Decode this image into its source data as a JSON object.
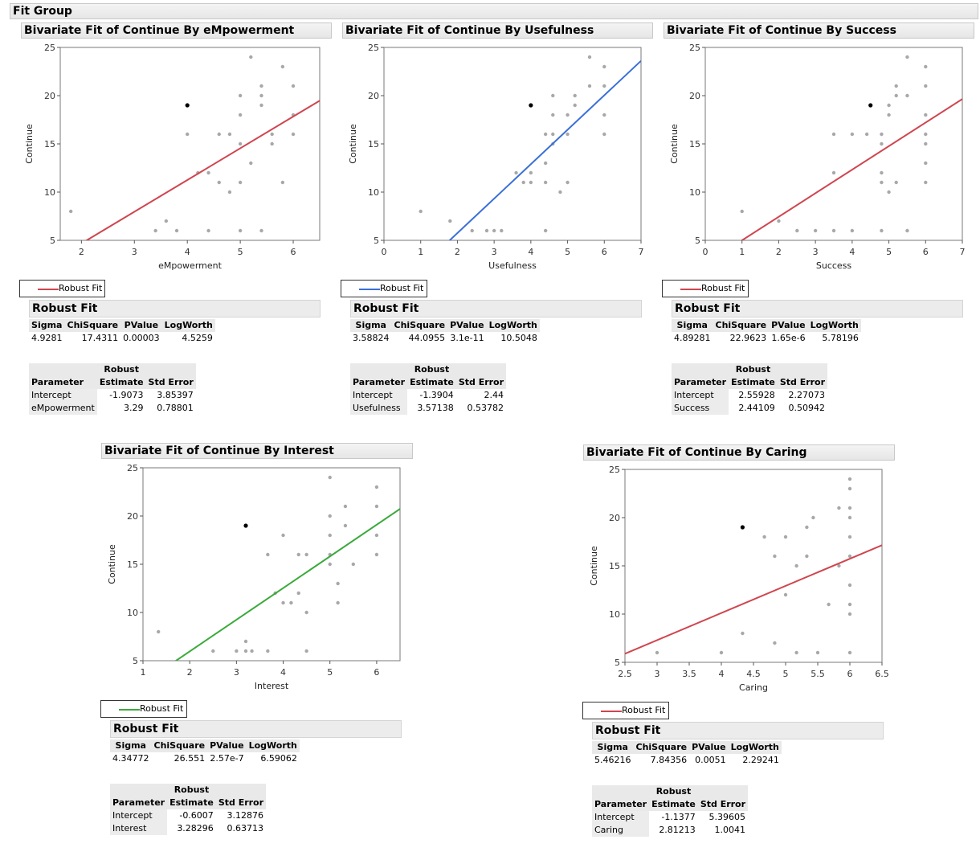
{
  "group_title": "Fit Group",
  "legend_label": "Robust Fit",
  "robust_fit_title": "Robust Fit",
  "stats_headers": [
    "Sigma",
    "ChiSquare",
    "PValue",
    "LogWorth"
  ],
  "param_header_robust": "Robust",
  "param_headers": [
    "Parameter",
    "Estimate",
    "Std Error"
  ],
  "ylabel": "Continue",
  "colors": {
    "red": "#d0454f",
    "blue": "#3a6fd8",
    "green": "#3aaa3a",
    "point": "#a8a8a8",
    "highlight": "#000000"
  },
  "panels": [
    {
      "title": "Bivariate Fit of Continue By eMpowerment",
      "line_color": "#d0454f",
      "stats": {
        "sigma": "4.9281",
        "chisq": "17.4311",
        "pvalue": "0.00003",
        "logworth": "4.5259"
      },
      "params": [
        {
          "name": "Intercept",
          "estimate": "-1.9073",
          "stderr": "3.85397"
        },
        {
          "name": "eMpowerment",
          "estimate": "3.29",
          "stderr": "0.78801"
        }
      ],
      "chart_data": {
        "type": "scatter",
        "title": "Bivariate Fit of Continue By eMpowerment",
        "xlabel": "eMpowerment",
        "ylabel": "Continue",
        "xlim": [
          1.6,
          6.5
        ],
        "ylim": [
          5,
          25
        ],
        "xticks": [
          "2",
          "3",
          "4",
          "5",
          "6"
        ],
        "xtick_values": [
          2,
          3,
          4,
          5,
          6
        ],
        "yticks": [
          "5",
          "10",
          "15",
          "20",
          "25"
        ],
        "ytick_values": [
          5,
          10,
          15,
          20,
          25
        ],
        "fit": {
          "intercept": -1.9073,
          "slope": 3.29
        },
        "highlight": [
          4,
          19
        ],
        "points": [
          [
            1.8,
            8
          ],
          [
            3.4,
            6
          ],
          [
            3.6,
            7
          ],
          [
            3.8,
            6
          ],
          [
            4,
            16
          ],
          [
            4.2,
            12
          ],
          [
            4.4,
            12
          ],
          [
            4.4,
            6
          ],
          [
            4.6,
            16
          ],
          [
            4.6,
            11
          ],
          [
            4.8,
            16
          ],
          [
            4.8,
            10
          ],
          [
            5,
            20
          ],
          [
            5,
            18
          ],
          [
            5,
            15
          ],
          [
            5,
            11
          ],
          [
            5,
            6
          ],
          [
            5.2,
            24
          ],
          [
            5.2,
            13
          ],
          [
            5.4,
            21
          ],
          [
            5.4,
            20
          ],
          [
            5.4,
            19
          ],
          [
            5.4,
            6
          ],
          [
            5.6,
            16
          ],
          [
            5.6,
            15
          ],
          [
            5.8,
            23
          ],
          [
            5.8,
            11
          ],
          [
            6,
            21
          ],
          [
            6,
            18
          ],
          [
            6,
            16
          ]
        ]
      }
    },
    {
      "title": "Bivariate Fit of Continue By Usefulness",
      "line_color": "#3a6fd8",
      "stats": {
        "sigma": "3.58824",
        "chisq": "44.0955",
        "pvalue": "3.1e-11",
        "logworth": "10.5048"
      },
      "params": [
        {
          "name": "Intercept",
          "estimate": "-1.3904",
          "stderr": "2.44"
        },
        {
          "name": "Usefulness",
          "estimate": "3.57138",
          "stderr": "0.53782"
        }
      ],
      "chart_data": {
        "type": "scatter",
        "title": "Bivariate Fit of Continue By Usefulness",
        "xlabel": "Usefulness",
        "ylabel": "Continue",
        "xlim": [
          0,
          7
        ],
        "ylim": [
          5,
          25
        ],
        "xticks": [
          "0",
          "1",
          "2",
          "3",
          "4",
          "5",
          "6",
          "7"
        ],
        "xtick_values": [
          0,
          1,
          2,
          3,
          4,
          5,
          6,
          7
        ],
        "yticks": [
          "5",
          "10",
          "15",
          "20",
          "25"
        ],
        "ytick_values": [
          5,
          10,
          15,
          20,
          25
        ],
        "fit": {
          "intercept": -1.3904,
          "slope": 3.57138
        },
        "highlight": [
          4,
          19
        ],
        "points": [
          [
            1,
            8
          ],
          [
            1.8,
            7
          ],
          [
            2.4,
            6
          ],
          [
            2.8,
            6
          ],
          [
            3,
            6
          ],
          [
            3.2,
            6
          ],
          [
            3.6,
            12
          ],
          [
            3.8,
            11
          ],
          [
            4,
            12
          ],
          [
            4,
            11
          ],
          [
            4.4,
            16
          ],
          [
            4.4,
            13
          ],
          [
            4.4,
            11
          ],
          [
            4.4,
            6
          ],
          [
            4.6,
            20
          ],
          [
            4.6,
            18
          ],
          [
            4.6,
            16
          ],
          [
            4.6,
            15
          ],
          [
            4.8,
            10
          ],
          [
            5,
            18
          ],
          [
            5,
            16
          ],
          [
            5,
            11
          ],
          [
            5.2,
            20
          ],
          [
            5.2,
            19
          ],
          [
            5.6,
            24
          ],
          [
            5.6,
            21
          ],
          [
            6,
            23
          ],
          [
            6,
            21
          ],
          [
            6,
            18
          ],
          [
            6,
            16
          ]
        ]
      }
    },
    {
      "title": "Bivariate Fit of Continue By Success",
      "line_color": "#d0454f",
      "stats": {
        "sigma": "4.89281",
        "chisq": "22.9623",
        "pvalue": "1.65e-6",
        "logworth": "5.78196"
      },
      "params": [
        {
          "name": "Intercept",
          "estimate": "2.55928",
          "stderr": "2.27073"
        },
        {
          "name": "Success",
          "estimate": "2.44109",
          "stderr": "0.50942"
        }
      ],
      "chart_data": {
        "type": "scatter",
        "title": "Bivariate Fit of Continue By Success",
        "xlabel": "Success",
        "ylabel": "Continue",
        "xlim": [
          0,
          7
        ],
        "ylim": [
          5,
          25
        ],
        "xticks": [
          "0",
          "1",
          "2",
          "3",
          "4",
          "5",
          "6",
          "7"
        ],
        "xtick_values": [
          0,
          1,
          2,
          3,
          4,
          5,
          6,
          7
        ],
        "yticks": [
          "5",
          "10",
          "15",
          "20",
          "25"
        ],
        "ytick_values": [
          5,
          10,
          15,
          20,
          25
        ],
        "fit": {
          "intercept": 2.55928,
          "slope": 2.44109
        },
        "highlight": [
          4.5,
          19
        ],
        "points": [
          [
            1,
            8
          ],
          [
            2,
            7
          ],
          [
            2.5,
            6
          ],
          [
            3,
            6
          ],
          [
            3.5,
            16
          ],
          [
            3.5,
            12
          ],
          [
            3.5,
            6
          ],
          [
            4,
            16
          ],
          [
            4,
            6
          ],
          [
            4.4,
            16
          ],
          [
            4.8,
            16
          ],
          [
            4.8,
            15
          ],
          [
            4.8,
            12
          ],
          [
            4.8,
            11
          ],
          [
            4.8,
            6
          ],
          [
            5,
            19
          ],
          [
            5,
            18
          ],
          [
            5,
            10
          ],
          [
            5.2,
            21
          ],
          [
            5.2,
            20
          ],
          [
            5.2,
            11
          ],
          [
            5.5,
            24
          ],
          [
            5.5,
            20
          ],
          [
            5.5,
            6
          ],
          [
            6,
            23
          ],
          [
            6,
            21
          ],
          [
            6,
            18
          ],
          [
            6,
            16
          ],
          [
            6,
            15
          ],
          [
            6,
            13
          ],
          [
            6,
            11
          ]
        ]
      }
    },
    {
      "title": "Bivariate Fit of Continue By Interest",
      "line_color": "#3aaa3a",
      "stats": {
        "sigma": "4.34772",
        "chisq": "26.551",
        "pvalue": "2.57e-7",
        "logworth": "6.59062"
      },
      "params": [
        {
          "name": "Intercept",
          "estimate": "-0.6007",
          "stderr": "3.12876"
        },
        {
          "name": "Interest",
          "estimate": "3.28296",
          "stderr": "0.63713"
        }
      ],
      "chart_data": {
        "type": "scatter",
        "title": "Bivariate Fit of Continue By Interest",
        "xlabel": "Interest",
        "ylabel": "Continue",
        "xlim": [
          1,
          6.5
        ],
        "ylim": [
          5,
          25
        ],
        "xticks": [
          "1",
          "2",
          "3",
          "4",
          "5",
          "6"
        ],
        "xtick_values": [
          1,
          2,
          3,
          4,
          5,
          6
        ],
        "yticks": [
          "5",
          "10",
          "15",
          "20",
          "25"
        ],
        "ytick_values": [
          5,
          10,
          15,
          20,
          25
        ],
        "fit": {
          "intercept": -0.6007,
          "slope": 3.28296
        },
        "highlight": [
          3.2,
          19
        ],
        "points": [
          [
            1.33,
            8
          ],
          [
            2.5,
            6
          ],
          [
            3,
            6
          ],
          [
            3.2,
            7
          ],
          [
            3.2,
            6
          ],
          [
            3.33,
            6
          ],
          [
            3.67,
            16
          ],
          [
            3.67,
            6
          ],
          [
            3.83,
            12
          ],
          [
            4,
            18
          ],
          [
            4,
            11
          ],
          [
            4.17,
            11
          ],
          [
            4.33,
            16
          ],
          [
            4.33,
            12
          ],
          [
            4.5,
            16
          ],
          [
            4.5,
            10
          ],
          [
            4.5,
            6
          ],
          [
            5,
            24
          ],
          [
            5,
            20
          ],
          [
            5,
            18
          ],
          [
            5,
            16
          ],
          [
            5,
            15
          ],
          [
            5.17,
            13
          ],
          [
            5.17,
            11
          ],
          [
            5.33,
            21
          ],
          [
            5.33,
            19
          ],
          [
            5.5,
            15
          ],
          [
            6,
            23
          ],
          [
            6,
            21
          ],
          [
            6,
            18
          ],
          [
            6,
            16
          ]
        ]
      }
    },
    {
      "title": "Bivariate Fit of Continue By Caring",
      "line_color": "#d0454f",
      "stats": {
        "sigma": "5.46216",
        "chisq": "7.84356",
        "pvalue": "0.0051",
        "logworth": "2.29241"
      },
      "params": [
        {
          "name": "Intercept",
          "estimate": "-1.1377",
          "stderr": "5.39605"
        },
        {
          "name": "Caring",
          "estimate": "2.81213",
          "stderr": "1.0041"
        }
      ],
      "chart_data": {
        "type": "scatter",
        "title": "Bivariate Fit of Continue By Caring",
        "xlabel": "Caring",
        "ylabel": "Continue",
        "xlim": [
          2.5,
          6.5
        ],
        "ylim": [
          5,
          25
        ],
        "xticks": [
          "2.5",
          "3",
          "3.5",
          "4",
          "4.5",
          "5",
          "5.5",
          "6",
          "6.5"
        ],
        "xtick_values": [
          2.5,
          3,
          3.5,
          4,
          4.5,
          5,
          5.5,
          6,
          6.5
        ],
        "yticks": [
          "5",
          "10",
          "15",
          "20",
          "25"
        ],
        "ytick_values": [
          5,
          10,
          15,
          20,
          25
        ],
        "fit": {
          "intercept": -1.1377,
          "slope": 2.81213
        },
        "highlight": [
          4.33,
          19
        ],
        "points": [
          [
            3,
            6
          ],
          [
            4,
            6
          ],
          [
            4.33,
            8
          ],
          [
            4.67,
            18
          ],
          [
            4.83,
            16
          ],
          [
            4.83,
            7
          ],
          [
            5,
            18
          ],
          [
            5,
            12
          ],
          [
            5.17,
            15
          ],
          [
            5.17,
            6
          ],
          [
            5.33,
            19
          ],
          [
            5.33,
            16
          ],
          [
            5.43,
            20
          ],
          [
            5.5,
            6
          ],
          [
            5.67,
            11
          ],
          [
            5.83,
            21
          ],
          [
            5.83,
            15
          ],
          [
            6,
            24
          ],
          [
            6,
            23
          ],
          [
            6,
            21
          ],
          [
            6,
            20
          ],
          [
            6,
            18
          ],
          [
            6,
            16
          ],
          [
            6,
            13
          ],
          [
            6,
            11
          ],
          [
            6,
            10
          ],
          [
            6,
            6
          ]
        ]
      }
    }
  ]
}
